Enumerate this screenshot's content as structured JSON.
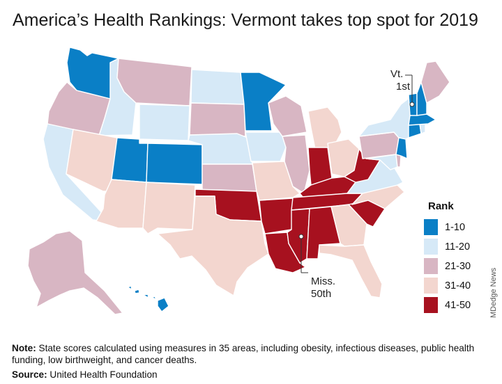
{
  "title": "America’s Health Rankings: Vermont takes top spot for 2019",
  "legend": {
    "title": "Rank",
    "items": [
      {
        "label": "1-10",
        "color": "#0a7fc6"
      },
      {
        "label": "11-20",
        "color": "#d6e9f7"
      },
      {
        "label": "21-30",
        "color": "#d8b6c3"
      },
      {
        "label": "31-40",
        "color": "#f3d6cf"
      },
      {
        "label": "41-50",
        "color": "#a7111f"
      }
    ]
  },
  "callouts": {
    "vt": {
      "line1": "Vt.",
      "line2": "1st"
    },
    "miss": {
      "line1": "Miss.",
      "line2": "50th"
    }
  },
  "note": {
    "prefix": "Note:",
    "text": " State scores calculated using measures in 35 areas, including obesity, infectious diseases, public health funding, low birthweight, and cancer deaths."
  },
  "source": {
    "prefix": "Source:",
    "text": " United Health Foundation"
  },
  "watermark": "MDedge News",
  "states": {
    "WA": "1-10",
    "OR": "21-30",
    "CA": "11-20",
    "ID": "11-20",
    "NV": "31-40",
    "MT": "21-30",
    "WY": "11-20",
    "UT": "1-10",
    "AZ": "31-40",
    "CO": "1-10",
    "NM": "31-40",
    "ND": "11-20",
    "SD": "21-30",
    "NE": "11-20",
    "KS": "21-30",
    "OK": "41-50",
    "TX": "31-40",
    "MN": "1-10",
    "IA": "11-20",
    "MO": "31-40",
    "AR": "41-50",
    "LA": "41-50",
    "WI": "21-30",
    "IL": "21-30",
    "MI": "31-40",
    "IN": "41-50",
    "OH": "31-40",
    "KY": "41-50",
    "TN": "41-50",
    "MS": "41-50",
    "AL": "41-50",
    "GA": "31-40",
    "FL": "31-40",
    "SC": "41-50",
    "NC": "31-40",
    "VA": "11-20",
    "WV": "41-50",
    "PA": "21-30",
    "NY": "11-20",
    "ME": "21-30",
    "VT": "1-10",
    "NH": "1-10",
    "MA": "1-10",
    "CT": "1-10",
    "RI": "11-20",
    "NJ": "1-10",
    "DE": "21-30",
    "MD": "11-20",
    "AK": "21-30",
    "HI": "1-10"
  }
}
